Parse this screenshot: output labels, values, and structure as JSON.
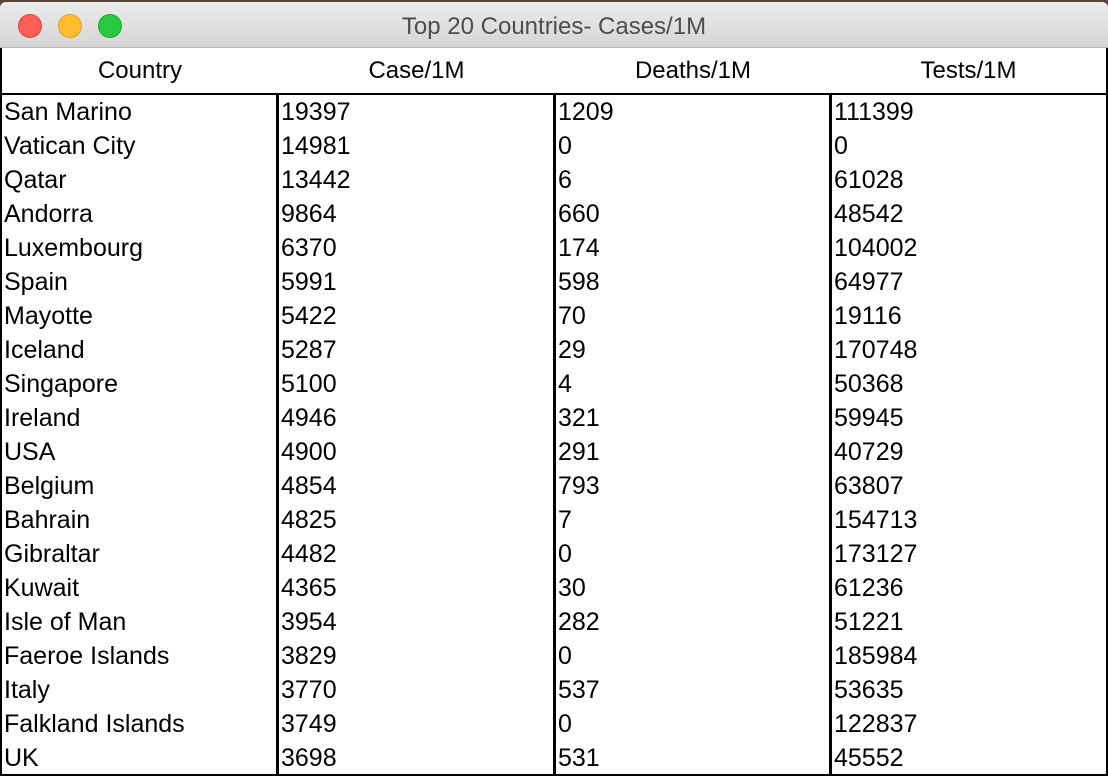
{
  "window": {
    "title": "Top 20 Countries- Cases/1M"
  },
  "table": {
    "headers": [
      "Country",
      "Case/1M",
      "Deaths/1M",
      "Tests/1M"
    ],
    "rows": [
      [
        "San Marino",
        "19397",
        "1209",
        "111399"
      ],
      [
        "Vatican City",
        "14981",
        "0",
        "0"
      ],
      [
        "Qatar",
        "13442",
        "6",
        "61028"
      ],
      [
        "Andorra",
        "9864",
        "660",
        "48542"
      ],
      [
        "Luxembourg",
        "6370",
        "174",
        "104002"
      ],
      [
        "Spain",
        "5991",
        "598",
        "64977"
      ],
      [
        "Mayotte",
        "5422",
        "70",
        "19116"
      ],
      [
        "Iceland",
        "5287",
        "29",
        "170748"
      ],
      [
        "Singapore",
        "5100",
        "4",
        "50368"
      ],
      [
        "Ireland",
        "4946",
        "321",
        "59945"
      ],
      [
        "USA",
        "4900",
        "291",
        "40729"
      ],
      [
        "Belgium",
        "4854",
        "793",
        "63807"
      ],
      [
        "Bahrain",
        "4825",
        "7",
        "154713"
      ],
      [
        "Gibraltar",
        "4482",
        "0",
        "173127"
      ],
      [
        "Kuwait",
        "4365",
        "30",
        "61236"
      ],
      [
        "Isle of Man",
        "3954",
        "282",
        "51221"
      ],
      [
        "Faeroe Islands",
        "3829",
        "0",
        "185984"
      ],
      [
        "Italy",
        "3770",
        "537",
        "53635"
      ],
      [
        "Falkland Islands",
        "3749",
        "0",
        "122837"
      ],
      [
        "UK",
        "3698",
        "531",
        "45552"
      ]
    ]
  }
}
